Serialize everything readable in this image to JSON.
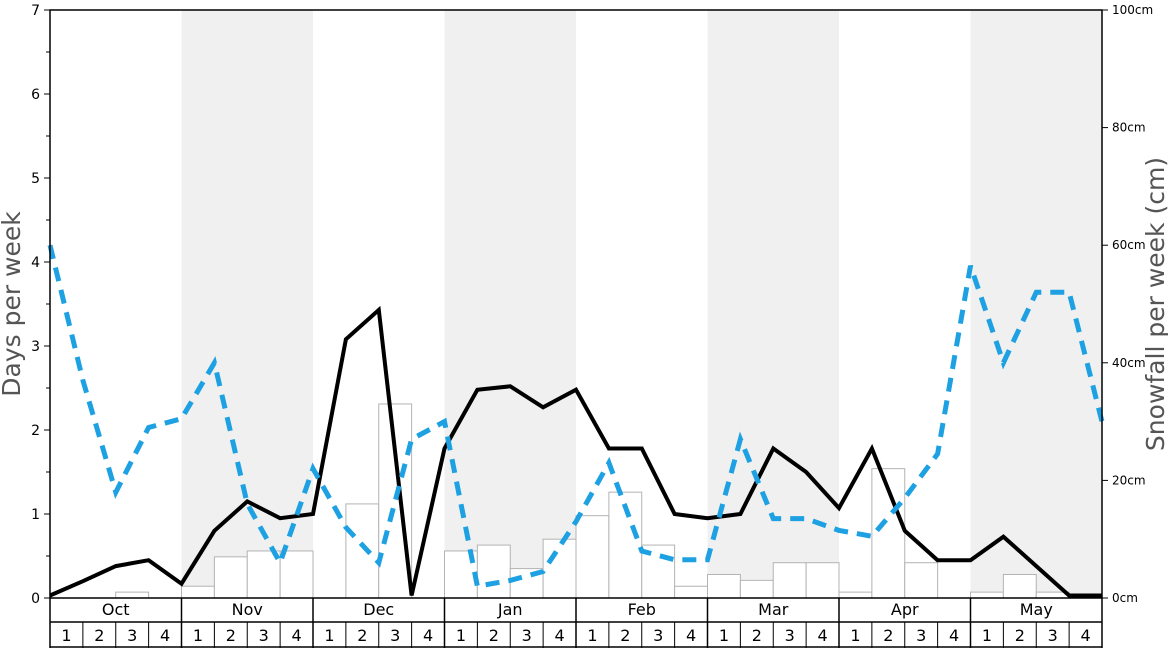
{
  "chart_data": {
    "type": "bar",
    "ylabel_left": "Days per week",
    "ylabel_right": "Snowfall per week (cm)",
    "ylim_left": [
      0,
      7
    ],
    "ylim_right": [
      0,
      100
    ],
    "yticks_left": [
      "0",
      "1",
      "2",
      "3",
      "4",
      "5",
      "6",
      "7"
    ],
    "yticks_right": [
      "0cm",
      "20cm",
      "40cm",
      "60cm",
      "80cm",
      "100cm"
    ],
    "months": [
      "Oct",
      "Nov",
      "Dec",
      "Jan",
      "Feb",
      "Mar",
      "Apr",
      "May"
    ],
    "weeks": [
      "1",
      "2",
      "3",
      "4"
    ],
    "grid": false,
    "shaded_months": [
      "Nov",
      "Jan",
      "Mar",
      "May"
    ],
    "colors": {
      "bar_fill": "#ffffff",
      "bar_stroke": "#b3b3b3",
      "solid_line": "#000000",
      "dashed_line": "#1da1e2",
      "shade": "#f0f0f0"
    },
    "series": [
      {
        "type": "bar",
        "axis": "left",
        "values": [
          0,
          0,
          0.07,
          0,
          0.14,
          0.49,
          0.56,
          0.56,
          0,
          1.12,
          2.31,
          0,
          0.56,
          0.63,
          0.35,
          0.7,
          0.98,
          1.26,
          0.63,
          0.14,
          0.28,
          0.21,
          0.42,
          0.42,
          0.07,
          1.54,
          0.42,
          0,
          0.07,
          0.28,
          0.07,
          0
        ]
      },
      {
        "type": "line",
        "style": "solid",
        "axis": "left",
        "values": [
          0.03,
          0.2,
          0.38,
          0.45,
          0.17,
          0.8,
          1.15,
          0.95,
          1.0,
          3.08,
          3.43,
          0.03,
          1.78,
          2.48,
          2.52,
          2.27,
          2.48,
          1.78,
          1.78,
          1.0,
          0.95,
          1.0,
          1.78,
          1.5,
          1.07,
          1.78,
          0.8,
          0.45,
          0.45,
          0.73,
          0.38,
          0.03,
          0.03
        ]
      },
      {
        "type": "line",
        "style": "dashed",
        "axis": "right",
        "values": [
          60,
          37,
          18,
          29,
          30.5,
          40,
          16,
          6,
          22,
          12,
          6,
          27,
          30,
          2,
          3,
          4.5,
          13,
          23,
          8,
          6.5,
          6.5,
          27,
          13.5,
          13.5,
          11.5,
          10.5,
          17,
          24.5,
          56.5,
          40,
          52,
          52,
          30
        ]
      }
    ]
  }
}
